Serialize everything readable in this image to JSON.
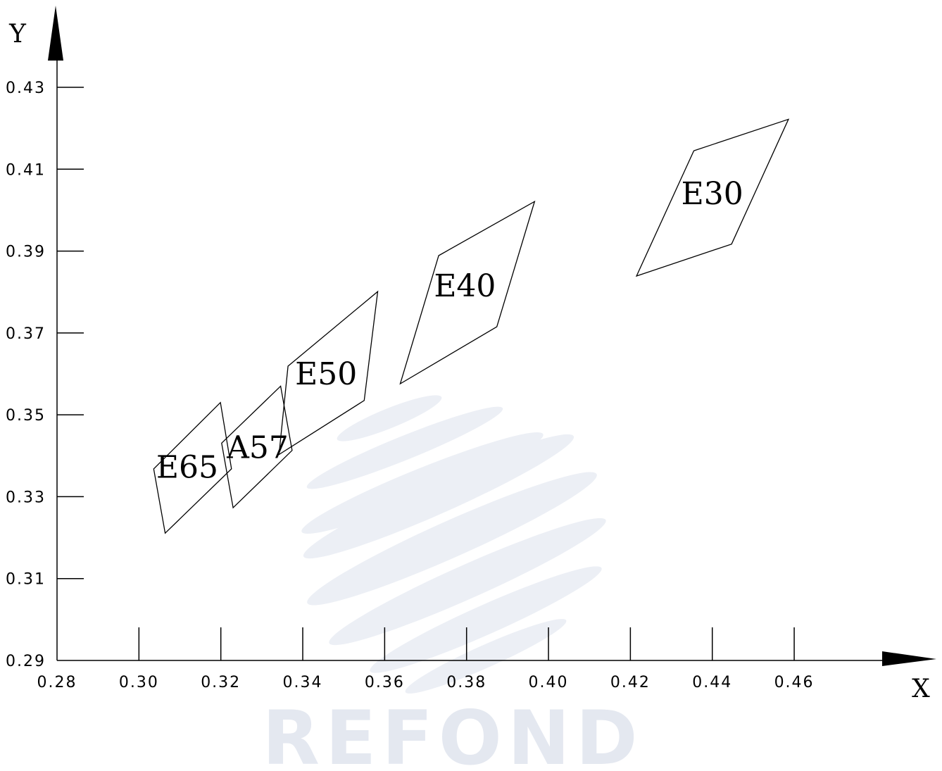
{
  "chart_data": {
    "type": "scatter",
    "title": "",
    "xlabel": "X",
    "ylabel": "Y",
    "xlim": [
      0.28,
      0.48
    ],
    "ylim": [
      0.29,
      0.43
    ],
    "x_ticks": [
      "0.28",
      "0.30",
      "0.32",
      "0.34",
      "0.36",
      "0.38",
      "0.40",
      "0.42",
      "0.44",
      "0.46"
    ],
    "y_ticks": [
      "0.29",
      "0.31",
      "0.33",
      "0.35",
      "0.37",
      "0.39",
      "0.41",
      "0.43"
    ],
    "grid": false,
    "regions": [
      {
        "name": "E65",
        "points": [
          [
            0.3036,
            0.3368
          ],
          [
            0.3199,
            0.353
          ],
          [
            0.3226,
            0.3368
          ],
          [
            0.3064,
            0.3211
          ]
        ],
        "label_at": [
          0.3118,
          0.3372
        ]
      },
      {
        "name": "A57",
        "points": [
          [
            0.3202,
            0.3431
          ],
          [
            0.3346,
            0.357
          ],
          [
            0.3374,
            0.3413
          ],
          [
            0.323,
            0.3273
          ]
        ],
        "label_at": [
          0.329,
          0.342
        ]
      },
      {
        "name": "E50",
        "points": [
          [
            0.3364,
            0.3619
          ],
          [
            0.3583,
            0.3801
          ],
          [
            0.355,
            0.3535
          ],
          [
            0.3342,
            0.3403
          ]
        ],
        "label_at": [
          0.3457,
          0.36
        ]
      },
      {
        "name": "E40",
        "points": [
          [
            0.3732,
            0.3889
          ],
          [
            0.3966,
            0.4021
          ],
          [
            0.3874,
            0.3715
          ],
          [
            0.3638,
            0.3576
          ]
        ],
        "label_at": [
          0.3796,
          0.3815
        ]
      },
      {
        "name": "E30",
        "points": [
          [
            0.4355,
            0.4145
          ],
          [
            0.4586,
            0.4222
          ],
          [
            0.4447,
            0.3917
          ],
          [
            0.4215,
            0.3839
          ]
        ],
        "label_at": [
          0.44,
          0.404
        ]
      }
    ]
  },
  "watermark_text": "REFOND"
}
